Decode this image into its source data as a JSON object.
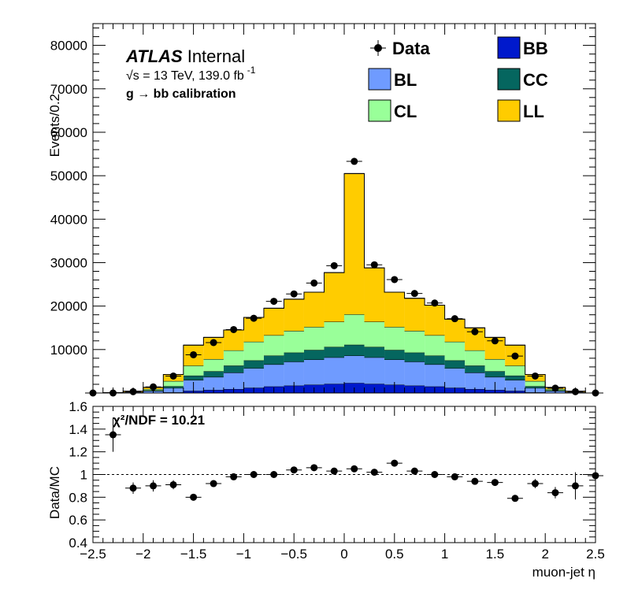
{
  "chart_data": [
    {
      "type": "stacked-histogram",
      "ylabel": "Events/0.2",
      "xlim": [
        -2.5,
        2.5
      ],
      "ylim": [
        0,
        85000
      ],
      "ytick_labels": [
        "10000",
        "20000",
        "30000",
        "40000",
        "50000",
        "60000",
        "70000",
        "80000"
      ],
      "labels": {
        "experiment": "ATLAS",
        "status": "Internal",
        "energy": "s = 13 TeV, 139.0 fb",
        "energy_exp": "-1",
        "sqrt_symbol": "√",
        "process": "g  → bb calibration"
      },
      "bin_edges": [
        -2.4,
        -2.2,
        -2.0,
        -1.8,
        -1.6,
        -1.4,
        -1.2,
        -1.0,
        -0.8,
        -0.6,
        -0.4,
        -0.2,
        0.0,
        0.2,
        0.4,
        0.6,
        0.8,
        1.0,
        1.2,
        1.4,
        1.6,
        1.8,
        2.0,
        2.2,
        2.4
      ],
      "series": [
        {
          "name": "BB",
          "color": "#0019cc",
          "values": [
            0,
            0,
            50,
            150,
            500,
            700,
            900,
            1200,
            1500,
            1700,
            1900,
            2100,
            2300,
            2100,
            1900,
            1700,
            1500,
            1200,
            900,
            700,
            500,
            150,
            50,
            0
          ]
        },
        {
          "name": "BL",
          "color": "#6f9bff",
          "values": [
            100,
            200,
            400,
            1000,
            2500,
            3000,
            3800,
            4500,
            5100,
            5500,
            5800,
            6100,
            6300,
            6100,
            5800,
            5500,
            5100,
            4500,
            3800,
            3000,
            2500,
            1000,
            400,
            200
          ]
        },
        {
          "name": "CC",
          "color": "#05665f",
          "values": [
            0,
            0,
            150,
            400,
            1000,
            1300,
            1600,
            1800,
            2000,
            2100,
            2200,
            2400,
            2500,
            2400,
            2200,
            2100,
            2000,
            1800,
            1600,
            1300,
            1000,
            400,
            150,
            0
          ]
        },
        {
          "name": "CL",
          "color": "#99ff99",
          "values": [
            0,
            0,
            300,
            1200,
            2300,
            2800,
            3500,
            4300,
            4700,
            5000,
            5300,
            5800,
            7000,
            5800,
            5300,
            5000,
            4700,
            4300,
            3500,
            2800,
            2300,
            1200,
            300,
            0
          ]
        },
        {
          "name": "LL",
          "color": "#ffcc00",
          "values": [
            0,
            200,
            400,
            1500,
            4700,
            5000,
            4700,
            5600,
            6200,
            7300,
            8000,
            11300,
            32400,
            12400,
            8000,
            7500,
            6900,
            5200,
            5200,
            5000,
            4700,
            1500,
            400,
            200
          ]
        }
      ],
      "data_points": {
        "name": "Data",
        "x": [
          -2.5,
          -2.3,
          -2.1,
          -1.9,
          -1.7,
          -1.5,
          -1.3,
          -1.1,
          -0.9,
          -0.7,
          -0.5,
          -0.3,
          -0.1,
          0.1,
          0.3,
          0.5,
          0.7,
          0.9,
          1.1,
          1.3,
          1.5,
          1.7,
          1.9,
          2.1,
          2.3,
          2.5
        ],
        "y": [
          0,
          0,
          300,
          1400,
          3900,
          8800,
          11600,
          14600,
          17200,
          21100,
          22800,
          25300,
          29300,
          53300,
          29500,
          26100,
          22900,
          20700,
          17100,
          14100,
          12000,
          8500,
          3900,
          1100,
          300,
          0
        ]
      },
      "legend": {
        "placement": "top-right",
        "columns": 2,
        "entries": [
          "Data",
          "BB",
          "BL",
          "CC",
          "CL",
          "LL"
        ]
      }
    },
    {
      "type": "scatter",
      "ylabel": "Data/MC",
      "xlabel": "muon-jet η",
      "xlim": [
        -2.5,
        2.5
      ],
      "ylim": [
        0.4,
        1.6
      ],
      "reference_line": 1.0,
      "annotation": "χ²/NDF = 10.21",
      "xtick_labels": [
        "−2.5",
        "−2",
        "−1.5",
        "−1",
        "−0.5",
        "0",
        "0.5",
        "1",
        "1.5",
        "2",
        "2.5"
      ],
      "ytick_labels": [
        "0.4",
        "0.6",
        "0.8",
        "1",
        "1.2",
        "1.4",
        "1.6"
      ],
      "x": [
        -2.3,
        -2.1,
        -1.9,
        -1.7,
        -1.5,
        -1.3,
        -1.1,
        -0.9,
        -0.7,
        -0.5,
        -0.3,
        -0.1,
        0.1,
        0.3,
        0.5,
        0.7,
        0.9,
        1.1,
        1.3,
        1.5,
        1.7,
        1.9,
        2.1,
        2.3,
        2.5
      ],
      "y": [
        1.35,
        0.88,
        0.9,
        0.91,
        0.8,
        0.92,
        0.98,
        1.0,
        1.0,
        1.04,
        1.06,
        1.03,
        1.05,
        1.02,
        1.1,
        1.03,
        1.0,
        0.98,
        0.94,
        0.93,
        0.79,
        0.92,
        0.84,
        0.9,
        0.99
      ],
      "yerr": [
        0.15,
        0.05,
        0.05,
        0.04,
        0.02,
        0.015,
        0.01,
        0.01,
        0.01,
        0.01,
        0.01,
        0.01,
        0.01,
        0.01,
        0.01,
        0.01,
        0.01,
        0.01,
        0.015,
        0.015,
        0.02,
        0.04,
        0.05,
        0.12,
        0.25
      ]
    }
  ]
}
